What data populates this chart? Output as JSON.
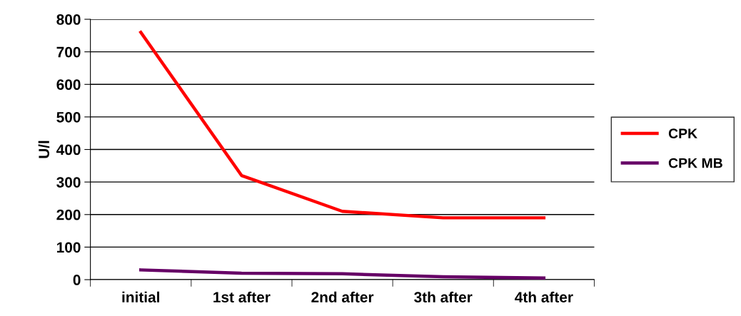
{
  "chart_data": {
    "type": "line",
    "ylabel": "U/l",
    "categories": [
      "initial",
      "1st after",
      "2nd after",
      "3th after",
      "4th after"
    ],
    "series": [
      {
        "name": "CPK",
        "color": "#ff0000",
        "values": [
          760,
          320,
          210,
          190,
          190
        ]
      },
      {
        "name": "CPK MB",
        "color": "#660066",
        "values": [
          30,
          20,
          18,
          9,
          5
        ]
      }
    ],
    "ylim": [
      0,
      800
    ],
    "yticks": [
      0,
      100,
      200,
      300,
      400,
      500,
      600,
      700,
      800
    ],
    "grid": "y",
    "legend": "right",
    "marker": "none",
    "line_style": "solid"
  }
}
